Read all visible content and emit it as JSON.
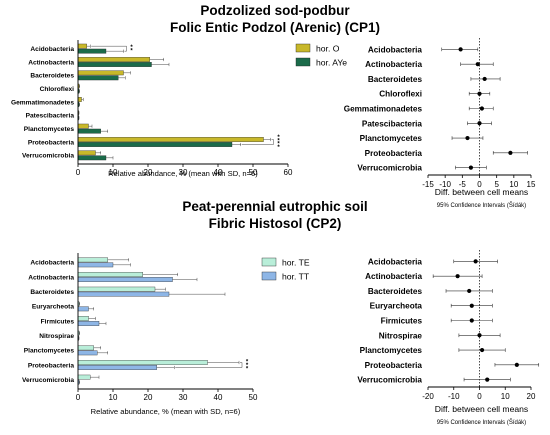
{
  "figure": {
    "panel1_title": "Podzolized sod-podbur",
    "panel1_subtitle": "Folic Entic Podzol (Arenic) (CP1)",
    "panel2_title": "Peat-perennial eutrophic soil",
    "panel2_subtitle": "Fibric Histosol (CP2)"
  },
  "chart_data": [
    {
      "id": "cp1_bar",
      "type": "bar",
      "orientation": "horizontal",
      "categories": [
        "Acidobacteria",
        "Actinobacteria",
        "Bacteroidetes",
        "Chloroflexi",
        "Gemmatimonadetes",
        "Patescibacteria",
        "Planctomycetes",
        "Proteobacteria",
        "Verrucomicrobia"
      ],
      "series": [
        {
          "name": "hor. O",
          "color": "#c8b82a",
          "values": [
            2.5,
            20.5,
            13,
            0.3,
            1,
            0.2,
            3,
            53,
            5
          ],
          "sd": [
            1,
            4,
            2,
            0.2,
            0.5,
            0.1,
            1,
            2,
            1.5
          ]
        },
        {
          "name": "hor. AYe",
          "color": "#1b6b4a",
          "values": [
            8,
            21,
            11.5,
            0.3,
            0.3,
            0.2,
            6.5,
            44,
            8
          ],
          "sd": [
            5,
            5,
            2,
            0.2,
            0.2,
            0.1,
            2,
            2.5,
            2
          ]
        }
      ],
      "xlim": [
        0,
        60
      ],
      "xticks": [
        0,
        10,
        20,
        30,
        40,
        50,
        60
      ],
      "xlabel": "Relative abundance, % (mean with SD, n=6)",
      "significance": [
        {
          "category": "Acidobacteria",
          "label": "**"
        },
        {
          "category": "Proteobacteria",
          "label": "****"
        }
      ],
      "legend_position": "top-right"
    },
    {
      "id": "cp1_ci",
      "type": "scatter",
      "categories": [
        "Acidobacteria",
        "Actinobacteria",
        "Bacteroidetes",
        "Chloroflexi",
        "Gemmatimonadetes",
        "Patescibacteria",
        "Planctomycetes",
        "Proteobacteria",
        "Verrucomicrobia"
      ],
      "values": [
        -5.5,
        -0.5,
        1.5,
        0,
        0.7,
        0,
        -3.5,
        9,
        -2.5
      ],
      "ci_low": [
        -11,
        -5.5,
        -2.5,
        -3,
        -3,
        -3.5,
        -8,
        4,
        -7
      ],
      "ci_high": [
        -0.5,
        4,
        6,
        3,
        4,
        3.5,
        1,
        14,
        2
      ],
      "xlim": [
        -15,
        15
      ],
      "xticks": [
        -15,
        -10,
        -5,
        0,
        5,
        10,
        15
      ],
      "xlabel": "Diff. between cell means",
      "note": "95% Confidence Intervals (Šídák)"
    },
    {
      "id": "cp2_bar",
      "type": "bar",
      "orientation": "horizontal",
      "categories": [
        "Acidobacteria",
        "Actinobacteria",
        "Bacteroidetes",
        "Euryarcheota",
        "Firmicutes",
        "Nitrospirae",
        "Planctomycetes",
        "Proteobacteria",
        "Verrucomicrobia"
      ],
      "series": [
        {
          "name": "hor. TE",
          "color": "#b9eed9",
          "values": [
            8.5,
            18.5,
            22,
            0.3,
            3,
            0.3,
            4.5,
            37,
            3.5
          ],
          "sd": [
            6,
            10,
            3,
            0.2,
            2,
            0.2,
            2,
            9,
            2.5
          ]
        },
        {
          "name": "hor. TT",
          "color": "#8eb6e6",
          "values": [
            10,
            27,
            26,
            3,
            6,
            0.2,
            5.5,
            22.5,
            0.3
          ],
          "sd": [
            5,
            7,
            16,
            1.5,
            2,
            0.1,
            3,
            5,
            0.2
          ]
        }
      ],
      "xlim": [
        0,
        50
      ],
      "xticks": [
        0,
        10,
        20,
        30,
        40,
        50
      ],
      "xlabel": "Relative abundance, % (mean with SD, n=6)",
      "significance": [
        {
          "category": "Proteobacteria",
          "label": "***"
        }
      ],
      "legend_position": "top-right"
    },
    {
      "id": "cp2_ci",
      "type": "scatter",
      "categories": [
        "Acidobacteria",
        "Actinobacteria",
        "Bacteroidetes",
        "Euryarcheota",
        "Firmicutes",
        "Nitrospirae",
        "Planctomycetes",
        "Proteobacteria",
        "Verrucomicrobia"
      ],
      "values": [
        -1.5,
        -8.5,
        -4,
        -3,
        -3,
        0,
        1,
        14.5,
        3
      ],
      "ci_low": [
        -10,
        -18,
        -13,
        -11,
        -11,
        -8,
        -8,
        6,
        -6
      ],
      "ci_high": [
        7,
        1,
        5,
        5,
        5,
        8,
        10,
        23,
        12
      ],
      "xlim": [
        -20,
        20
      ],
      "xticks": [
        -20,
        -10,
        0,
        10,
        20
      ],
      "xlabel": "Diff. between cell means",
      "note": "95% Confidence Intervals (Šídák)"
    }
  ]
}
